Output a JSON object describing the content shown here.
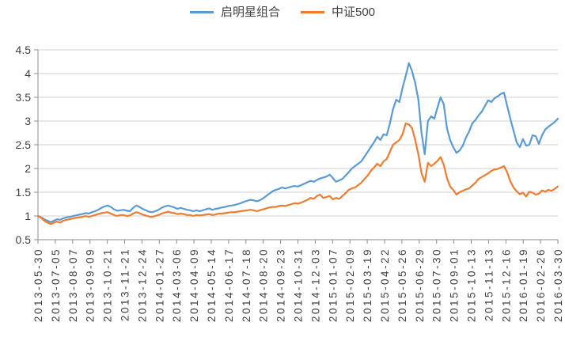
{
  "style": {
    "background": "#FFFFFF",
    "grid_color": "#D2D2D2",
    "axis_color": "#8C8C8C",
    "text_color": "#404040",
    "series1_color": "#5B9BD5",
    "series2_color": "#ED7D31"
  },
  "legend": {
    "items": [
      {
        "label": "启明星组合",
        "color": "#5B9BD5"
      },
      {
        "label": "中证500",
        "color": "#ED7D31"
      }
    ]
  },
  "chart_data": {
    "type": "line",
    "title": "",
    "xlabel": "",
    "ylabel": "",
    "ylim": [
      0.5,
      4.5
    ],
    "grid": true,
    "legend_position": "top",
    "y_ticks": [
      0.5,
      1,
      1.5,
      2,
      2.5,
      3,
      3.5,
      4,
      4.5
    ],
    "y_tick_labels": [
      "0.5",
      "1",
      "1.5",
      "2",
      "2.5",
      "3",
      "3.5",
      "4",
      "4.5"
    ],
    "x_tick_labels": [
      "2013-05-30",
      "2013-07-05",
      "2013-08-07",
      "2013-09-09",
      "2013-10-21",
      "2013-11-21",
      "2013-12-24",
      "2014-01-27",
      "2014-03-06",
      "2014-04-09",
      "2014-05-14",
      "2014-06-17",
      "2014-07-18",
      "2014-08-20",
      "2014-09-23",
      "2014-10-31",
      "2014-12-03",
      "2015-01-07",
      "2015-02-09",
      "2015-03-19",
      "2015-04-22",
      "2015-05-26",
      "2015-06-29",
      "2015-07-30",
      "2015-09-01",
      "2015-10-13",
      "2015-11-13",
      "2015-12-16",
      "2016-01-19",
      "2016-02-26",
      "2016-03-30"
    ],
    "series": [
      {
        "name": "启明星组合",
        "color": "#5B9BD5",
        "values": [
          1.0,
          0.97,
          0.93,
          0.9,
          0.87,
          0.9,
          0.93,
          0.92,
          0.95,
          0.97,
          0.98,
          1.0,
          1.01,
          1.03,
          1.04,
          1.06,
          1.05,
          1.08,
          1.1,
          1.13,
          1.17,
          1.2,
          1.22,
          1.19,
          1.14,
          1.11,
          1.12,
          1.13,
          1.11,
          1.1,
          1.17,
          1.22,
          1.19,
          1.15,
          1.12,
          1.09,
          1.08,
          1.1,
          1.13,
          1.17,
          1.2,
          1.22,
          1.2,
          1.18,
          1.15,
          1.17,
          1.15,
          1.13,
          1.12,
          1.1,
          1.12,
          1.1,
          1.12,
          1.14,
          1.16,
          1.13,
          1.15,
          1.16,
          1.18,
          1.19,
          1.21,
          1.22,
          1.23,
          1.25,
          1.27,
          1.3,
          1.32,
          1.34,
          1.33,
          1.31,
          1.33,
          1.37,
          1.42,
          1.47,
          1.52,
          1.55,
          1.57,
          1.6,
          1.58,
          1.6,
          1.62,
          1.63,
          1.62,
          1.65,
          1.68,
          1.71,
          1.74,
          1.72,
          1.76,
          1.79,
          1.81,
          1.83,
          1.87,
          1.8,
          1.72,
          1.75,
          1.78,
          1.85,
          1.92,
          2.0,
          2.05,
          2.1,
          2.15,
          2.25,
          2.35,
          2.45,
          2.55,
          2.67,
          2.6,
          2.72,
          2.7,
          2.95,
          3.25,
          3.45,
          3.4,
          3.7,
          3.95,
          4.22,
          4.05,
          3.8,
          3.45,
          2.75,
          2.3,
          3.0,
          3.1,
          3.05,
          3.28,
          3.5,
          3.35,
          2.85,
          2.6,
          2.45,
          2.33,
          2.38,
          2.48,
          2.65,
          2.78,
          2.95,
          3.02,
          3.12,
          3.2,
          3.32,
          3.44,
          3.4,
          3.48,
          3.52,
          3.57,
          3.6,
          3.32,
          3.05,
          2.8,
          2.55,
          2.45,
          2.62,
          2.48,
          2.5,
          2.7,
          2.68,
          2.52,
          2.7,
          2.82,
          2.88,
          2.93,
          2.98,
          3.05
        ]
      },
      {
        "name": "中证500",
        "color": "#ED7D31",
        "values": [
          1.0,
          0.96,
          0.9,
          0.86,
          0.83,
          0.86,
          0.88,
          0.86,
          0.9,
          0.92,
          0.93,
          0.95,
          0.96,
          0.97,
          0.98,
          1.0,
          0.98,
          1.0,
          1.02,
          1.04,
          1.06,
          1.07,
          1.08,
          1.05,
          1.02,
          1.0,
          1.02,
          1.02,
          1.0,
          1.01,
          1.05,
          1.08,
          1.06,
          1.03,
          1.01,
          0.99,
          0.98,
          1.0,
          1.02,
          1.05,
          1.07,
          1.09,
          1.07,
          1.06,
          1.04,
          1.05,
          1.04,
          1.02,
          1.02,
          1.0,
          1.02,
          1.01,
          1.02,
          1.03,
          1.04,
          1.02,
          1.03,
          1.05,
          1.05,
          1.06,
          1.07,
          1.08,
          1.08,
          1.09,
          1.1,
          1.11,
          1.12,
          1.13,
          1.12,
          1.1,
          1.12,
          1.14,
          1.16,
          1.18,
          1.19,
          1.19,
          1.21,
          1.22,
          1.21,
          1.23,
          1.25,
          1.27,
          1.26,
          1.28,
          1.31,
          1.34,
          1.38,
          1.36,
          1.42,
          1.45,
          1.38,
          1.4,
          1.42,
          1.35,
          1.38,
          1.36,
          1.42,
          1.48,
          1.55,
          1.58,
          1.6,
          1.65,
          1.7,
          1.78,
          1.85,
          1.95,
          2.02,
          2.1,
          2.05,
          2.15,
          2.2,
          2.35,
          2.5,
          2.55,
          2.6,
          2.72,
          2.95,
          2.93,
          2.85,
          2.6,
          2.3,
          1.9,
          1.72,
          2.12,
          2.05,
          2.1,
          2.16,
          2.24,
          2.08,
          1.8,
          1.62,
          1.55,
          1.45,
          1.5,
          1.53,
          1.56,
          1.58,
          1.64,
          1.7,
          1.78,
          1.82,
          1.86,
          1.9,
          1.95,
          1.98,
          1.99,
          2.02,
          2.05,
          1.92,
          1.73,
          1.6,
          1.52,
          1.46,
          1.49,
          1.41,
          1.51,
          1.49,
          1.45,
          1.47,
          1.54,
          1.51,
          1.55,
          1.53,
          1.57,
          1.62
        ]
      }
    ]
  }
}
